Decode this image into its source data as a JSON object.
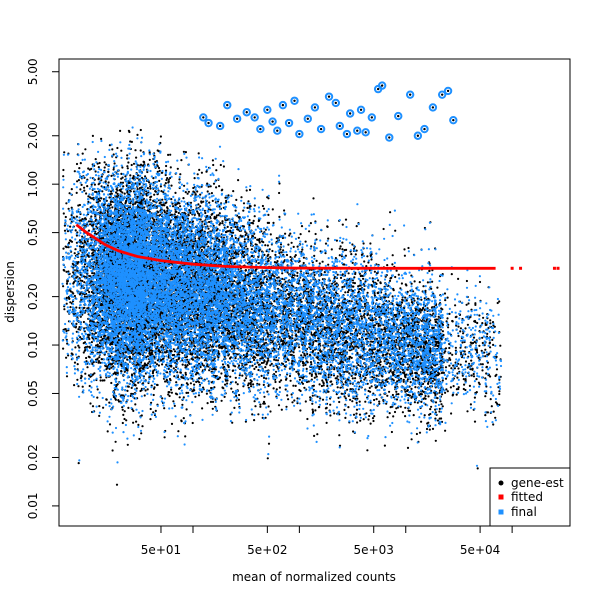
{
  "chart_data": {
    "type": "scatter",
    "title": "",
    "xlabel": "mean of normalized counts",
    "ylabel": "dispersion",
    "x_scale": "log",
    "y_scale": "log",
    "xlim": [
      5.5,
      350000
    ],
    "ylim": [
      0.0075,
      6.0
    ],
    "x_ticks": [
      {
        "value": 50,
        "label": "5e+01"
      },
      {
        "value": 500,
        "label": "5e+02"
      },
      {
        "value": 5000,
        "label": "5e+03"
      },
      {
        "value": 50000,
        "label": "5e+04"
      }
    ],
    "x_minor_ticks": [
      100,
      1000,
      10000,
      100000
    ],
    "y_ticks": [
      {
        "value": 0.01,
        "label": "0.01"
      },
      {
        "value": 0.02,
        "label": "0.02"
      },
      {
        "value": 0.05,
        "label": "0.05"
      },
      {
        "value": 0.1,
        "label": "0.10"
      },
      {
        "value": 0.2,
        "label": "0.20"
      },
      {
        "value": 0.5,
        "label": "0.50"
      },
      {
        "value": 1.0,
        "label": "1.00"
      },
      {
        "value": 2.0,
        "label": "2.00"
      },
      {
        "value": 5.0,
        "label": "5.00"
      }
    ],
    "grid": false,
    "legend": {
      "position": "bottom-right",
      "entries": [
        {
          "label": "gene-est",
          "color": "#000000"
        },
        {
          "label": "fitted",
          "color": "#ff0000"
        },
        {
          "label": "final",
          "color": "#1e90ff"
        }
      ]
    },
    "series": [
      {
        "name": "fitted",
        "color": "#ff0000",
        "points": [
          {
            "x": 8,
            "y": 0.56
          },
          {
            "x": 10,
            "y": 0.5
          },
          {
            "x": 15,
            "y": 0.42
          },
          {
            "x": 20,
            "y": 0.385
          },
          {
            "x": 30,
            "y": 0.355
          },
          {
            "x": 50,
            "y": 0.335
          },
          {
            "x": 100,
            "y": 0.318
          },
          {
            "x": 200,
            "y": 0.308
          },
          {
            "x": 500,
            "y": 0.303
          },
          {
            "x": 1000,
            "y": 0.301
          },
          {
            "x": 5000,
            "y": 0.3
          },
          {
            "x": 70000,
            "y": 0.3
          }
        ],
        "outlier_points": [
          {
            "x": 100000,
            "y": 0.3
          },
          {
            "x": 120000,
            "y": 0.3
          },
          {
            "x": 250000,
            "y": 0.3
          },
          {
            "x": 270000,
            "y": 0.3
          }
        ]
      },
      {
        "name": "gene-est / final",
        "cloud": {
          "estimated_points": 14000,
          "center": {
            "x": 200,
            "y": 0.18
          },
          "x_range": [
            6,
            280000
          ],
          "y_range": [
            0.0095,
            2.2
          ]
        }
      },
      {
        "name": "final (outliers)",
        "color": "#1e90ff",
        "points": [
          {
            "x": 125,
            "y": 2.6
          },
          {
            "x": 140,
            "y": 2.4
          },
          {
            "x": 180,
            "y": 2.3
          },
          {
            "x": 210,
            "y": 3.1
          },
          {
            "x": 260,
            "y": 2.55
          },
          {
            "x": 320,
            "y": 2.8
          },
          {
            "x": 380,
            "y": 2.6
          },
          {
            "x": 430,
            "y": 2.2
          },
          {
            "x": 500,
            "y": 2.9
          },
          {
            "x": 560,
            "y": 2.45
          },
          {
            "x": 620,
            "y": 2.15
          },
          {
            "x": 700,
            "y": 3.1
          },
          {
            "x": 800,
            "y": 2.4
          },
          {
            "x": 900,
            "y": 3.3
          },
          {
            "x": 1000,
            "y": 2.05
          },
          {
            "x": 1200,
            "y": 2.55
          },
          {
            "x": 1400,
            "y": 3.0
          },
          {
            "x": 1600,
            "y": 2.2
          },
          {
            "x": 1900,
            "y": 3.5
          },
          {
            "x": 2200,
            "y": 3.2
          },
          {
            "x": 2400,
            "y": 2.3
          },
          {
            "x": 2800,
            "y": 2.05
          },
          {
            "x": 3000,
            "y": 2.75
          },
          {
            "x": 3500,
            "y": 2.15
          },
          {
            "x": 3800,
            "y": 2.9
          },
          {
            "x": 4200,
            "y": 2.1
          },
          {
            "x": 4800,
            "y": 2.6
          },
          {
            "x": 5500,
            "y": 3.9
          },
          {
            "x": 6000,
            "y": 4.1
          },
          {
            "x": 7000,
            "y": 1.95
          },
          {
            "x": 8500,
            "y": 2.65
          },
          {
            "x": 11000,
            "y": 3.6
          },
          {
            "x": 13000,
            "y": 2.0
          },
          {
            "x": 15000,
            "y": 2.2
          },
          {
            "x": 18000,
            "y": 3.0
          },
          {
            "x": 22000,
            "y": 3.6
          },
          {
            "x": 25000,
            "y": 3.8
          },
          {
            "x": 28000,
            "y": 2.5
          }
        ]
      }
    ]
  }
}
